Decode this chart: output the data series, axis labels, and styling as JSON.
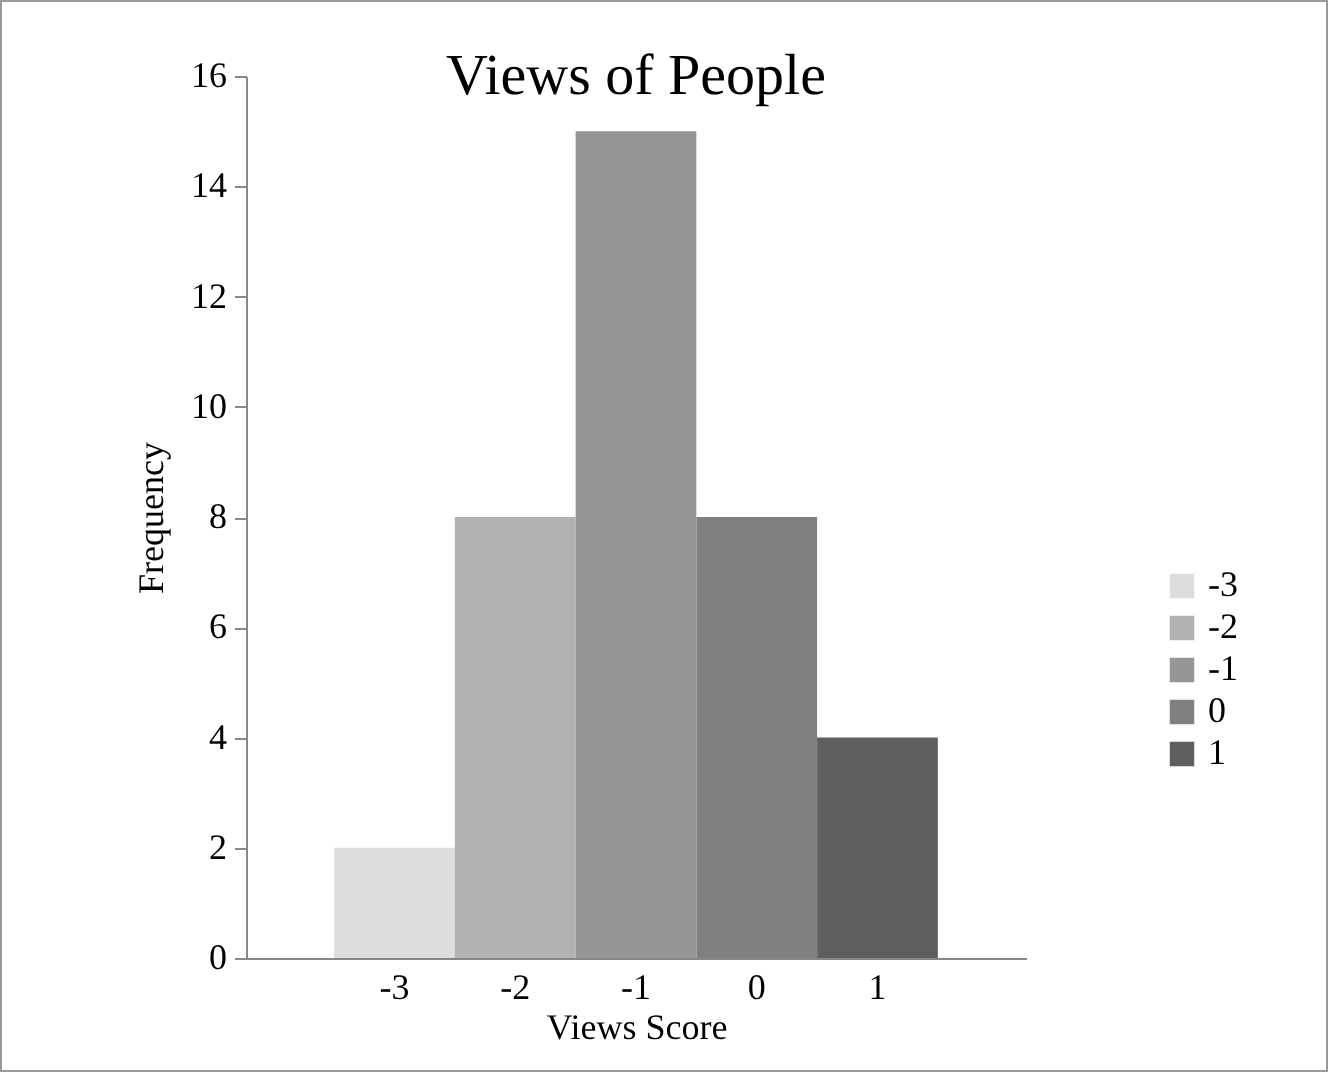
{
  "chart_data": {
    "type": "bar",
    "title": "Views of People",
    "xlabel": "Views Score",
    "ylabel": "Frequency",
    "categories": [
      "-3",
      "-2",
      "-1",
      "0",
      "1"
    ],
    "series": [
      {
        "name": "-3",
        "color": "#dddddd",
        "values": [
          2,
          null,
          null,
          null,
          null
        ]
      },
      {
        "name": "-2",
        "color": "#b2b2b2",
        "values": [
          null,
          8,
          null,
          null,
          null
        ]
      },
      {
        "name": "-1",
        "color": "#969696",
        "values": [
          null,
          null,
          15,
          null,
          null
        ]
      },
      {
        "name": "0",
        "color": "#808080",
        "values": [
          null,
          null,
          null,
          8,
          null
        ]
      },
      {
        "name": "1",
        "color": "#5f5f5f",
        "values": [
          null,
          null,
          null,
          null,
          4
        ]
      }
    ],
    "ylim": [
      0,
      16
    ],
    "yticks": [
      0,
      2,
      4,
      6,
      8,
      10,
      12,
      14,
      16
    ],
    "legend": "right"
  }
}
